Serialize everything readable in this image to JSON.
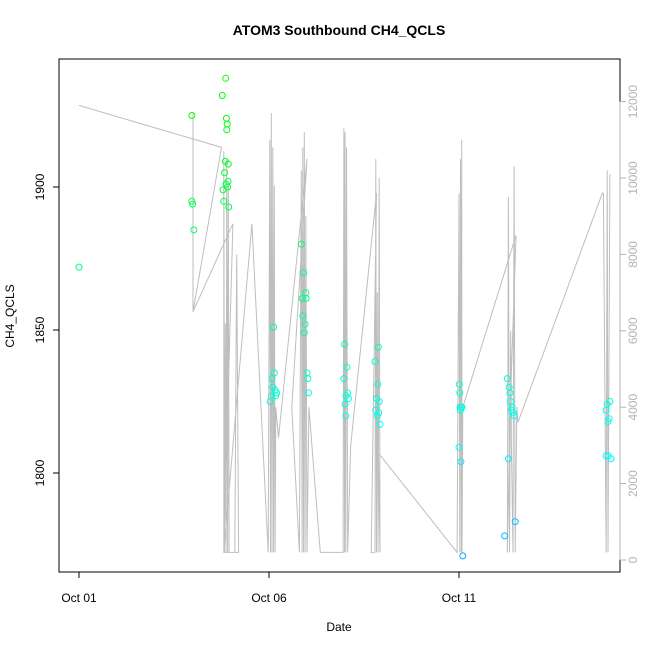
{
  "chart_data": {
    "type": "scatter",
    "title": "ATOM3 Southbound CH4_QCLS",
    "xlabel": "Date",
    "ylabel": "CH4_QCLS",
    "x_axis": {
      "kind": "date",
      "range_days_since_oct01": [
        0,
        14.5
      ],
      "ticks": [
        {
          "label": "Oct 01",
          "day": 0
        },
        {
          "label": "Oct 06",
          "day": 5
        },
        {
          "label": "Oct 11",
          "day": 10
        }
      ]
    },
    "y_left": {
      "range": [
        1768,
        1945
      ],
      "ticks": [
        1800,
        1850,
        1900
      ],
      "tick_labels": [
        "1800",
        "1850",
        "1900"
      ]
    },
    "y_right": {
      "range": [
        -500,
        12500
      ],
      "ticks": [
        0,
        2000,
        4000,
        6000,
        8000,
        10000,
        12000
      ],
      "tick_labels": [
        "0",
        "2000",
        "4000",
        "6000",
        "8000",
        "10000",
        "12000"
      ],
      "color": "#b3b3b3",
      "series": "altitude (gray line)"
    },
    "grid": false,
    "scatter_points": [
      {
        "day": 0.0,
        "ch4": 1872
      },
      {
        "day": 2.97,
        "ch4": 1925
      },
      {
        "day": 2.97,
        "ch4": 1895
      },
      {
        "day": 2.99,
        "ch4": 1894
      },
      {
        "day": 3.02,
        "ch4": 1885
      },
      {
        "day": 3.77,
        "ch4": 1932
      },
      {
        "day": 3.79,
        "ch4": 1899
      },
      {
        "day": 3.81,
        "ch4": 1895
      },
      {
        "day": 3.83,
        "ch4": 1905
      },
      {
        "day": 3.85,
        "ch4": 1909
      },
      {
        "day": 3.86,
        "ch4": 1938
      },
      {
        "day": 3.87,
        "ch4": 1901
      },
      {
        "day": 3.88,
        "ch4": 1924
      },
      {
        "day": 3.89,
        "ch4": 1920
      },
      {
        "day": 3.9,
        "ch4": 1922
      },
      {
        "day": 3.91,
        "ch4": 1900
      },
      {
        "day": 3.92,
        "ch4": 1902
      },
      {
        "day": 3.93,
        "ch4": 1908
      },
      {
        "day": 3.94,
        "ch4": 1893
      },
      {
        "day": 5.03,
        "ch4": 1825
      },
      {
        "day": 5.06,
        "ch4": 1827
      },
      {
        "day": 5.08,
        "ch4": 1833
      },
      {
        "day": 5.1,
        "ch4": 1830
      },
      {
        "day": 5.12,
        "ch4": 1851
      },
      {
        "day": 5.14,
        "ch4": 1835
      },
      {
        "day": 5.16,
        "ch4": 1829
      },
      {
        "day": 5.18,
        "ch4": 1827
      },
      {
        "day": 5.2,
        "ch4": 1828
      },
      {
        "day": 5.85,
        "ch4": 1880
      },
      {
        "day": 5.87,
        "ch4": 1861
      },
      {
        "day": 5.89,
        "ch4": 1855
      },
      {
        "day": 5.91,
        "ch4": 1870
      },
      {
        "day": 5.93,
        "ch4": 1849
      },
      {
        "day": 5.95,
        "ch4": 1852
      },
      {
        "day": 5.97,
        "ch4": 1863
      },
      {
        "day": 5.98,
        "ch4": 1861
      },
      {
        "day": 6.0,
        "ch4": 1835
      },
      {
        "day": 6.02,
        "ch4": 1833
      },
      {
        "day": 6.04,
        "ch4": 1828
      },
      {
        "day": 6.97,
        "ch4": 1833
      },
      {
        "day": 6.99,
        "ch4": 1845
      },
      {
        "day": 7.0,
        "ch4": 1824
      },
      {
        "day": 7.02,
        "ch4": 1820
      },
      {
        "day": 7.03,
        "ch4": 1827
      },
      {
        "day": 7.05,
        "ch4": 1837
      },
      {
        "day": 7.07,
        "ch4": 1828
      },
      {
        "day": 7.09,
        "ch4": 1826
      },
      {
        "day": 7.79,
        "ch4": 1839
      },
      {
        "day": 7.81,
        "ch4": 1822
      },
      {
        "day": 7.83,
        "ch4": 1826
      },
      {
        "day": 7.85,
        "ch4": 1820
      },
      {
        "day": 7.86,
        "ch4": 1831
      },
      {
        "day": 7.88,
        "ch4": 1844
      },
      {
        "day": 7.89,
        "ch4": 1821
      },
      {
        "day": 7.9,
        "ch4": 1825
      },
      {
        "day": 7.92,
        "ch4": 1817
      },
      {
        "day": 10.0,
        "ch4": 1809
      },
      {
        "day": 10.01,
        "ch4": 1831
      },
      {
        "day": 10.02,
        "ch4": 1828
      },
      {
        "day": 10.03,
        "ch4": 1823
      },
      {
        "day": 10.04,
        "ch4": 1822
      },
      {
        "day": 10.05,
        "ch4": 1804
      },
      {
        "day": 10.06,
        "ch4": 1823
      },
      {
        "day": 10.08,
        "ch4": 1823
      },
      {
        "day": 10.1,
        "ch4": 1771
      },
      {
        "day": 11.27,
        "ch4": 1833
      },
      {
        "day": 11.3,
        "ch4": 1805
      },
      {
        "day": 11.32,
        "ch4": 1830
      },
      {
        "day": 11.34,
        "ch4": 1828
      },
      {
        "day": 11.36,
        "ch4": 1825
      },
      {
        "day": 11.38,
        "ch4": 1822
      },
      {
        "day": 11.4,
        "ch4": 1823
      },
      {
        "day": 11.42,
        "ch4": 1821
      },
      {
        "day": 11.45,
        "ch4": 1820
      },
      {
        "day": 11.48,
        "ch4": 1783
      },
      {
        "day": 11.2,
        "ch4": 1778
      },
      {
        "day": 13.87,
        "ch4": 1822
      },
      {
        "day": 13.9,
        "ch4": 1824
      },
      {
        "day": 13.92,
        "ch4": 1818
      },
      {
        "day": 13.95,
        "ch4": 1819
      },
      {
        "day": 13.97,
        "ch4": 1825
      },
      {
        "day": 13.87,
        "ch4": 1806
      },
      {
        "day": 13.93,
        "ch4": 1806
      },
      {
        "day": 14.0,
        "ch4": 1805
      }
    ],
    "altitude_line": [
      [
        0.0,
        11900
      ],
      [
        3.75,
        10800
      ],
      [
        3.0,
        6500
      ],
      [
        3.0,
        11700
      ],
      [
        3.0,
        6500
      ],
      [
        4.05,
        8800
      ],
      [
        3.81,
        200
      ],
      [
        3.81,
        10700
      ],
      [
        3.83,
        200
      ],
      [
        3.85,
        6200
      ],
      [
        3.87,
        200
      ],
      [
        3.89,
        10500
      ],
      [
        3.91,
        200
      ],
      [
        3.93,
        9800
      ],
      [
        3.95,
        200
      ],
      [
        4.0,
        200
      ],
      [
        4.05,
        200
      ],
      [
        4.1,
        200
      ],
      [
        4.15,
        8000
      ],
      [
        4.2,
        200
      ],
      [
        3.81,
        200
      ],
      [
        4.55,
        8800
      ],
      [
        4.98,
        200
      ],
      [
        5.02,
        11000
      ],
      [
        5.04,
        200
      ],
      [
        5.06,
        11700
      ],
      [
        5.08,
        200
      ],
      [
        5.1,
        10800
      ],
      [
        5.12,
        200
      ],
      [
        5.14,
        9800
      ],
      [
        5.16,
        200
      ],
      [
        5.18,
        4000
      ],
      [
        5.25,
        3200
      ],
      [
        6.0,
        10500
      ],
      [
        5.6,
        4000
      ],
      [
        5.8,
        200
      ],
      [
        5.85,
        10200
      ],
      [
        5.87,
        200
      ],
      [
        5.89,
        10800
      ],
      [
        5.91,
        200
      ],
      [
        5.93,
        11200
      ],
      [
        5.95,
        200
      ],
      [
        5.97,
        9000
      ],
      [
        6.0,
        200
      ],
      [
        6.05,
        4000
      ],
      [
        6.35,
        200
      ],
      [
        6.95,
        200
      ],
      [
        6.97,
        11300
      ],
      [
        6.99,
        200
      ],
      [
        7.0,
        11200
      ],
      [
        7.02,
        200
      ],
      [
        7.04,
        10800
      ],
      [
        7.07,
        200
      ],
      [
        7.15,
        3000
      ],
      [
        7.83,
        9600
      ],
      [
        7.69,
        200
      ],
      [
        7.79,
        200
      ],
      [
        7.81,
        10500
      ],
      [
        7.83,
        200
      ],
      [
        7.85,
        7000
      ],
      [
        7.87,
        200
      ],
      [
        7.9,
        10000
      ],
      [
        7.92,
        200
      ],
      [
        7.88,
        2800
      ],
      [
        9.95,
        200
      ],
      [
        10.0,
        9600
      ],
      [
        10.02,
        200
      ],
      [
        10.04,
        10500
      ],
      [
        10.06,
        200
      ],
      [
        10.07,
        11000
      ],
      [
        10.08,
        200
      ],
      [
        10.1,
        4000
      ],
      [
        11.5,
        8500
      ],
      [
        11.35,
        4000
      ],
      [
        11.27,
        200
      ],
      [
        11.3,
        9500
      ],
      [
        11.33,
        200
      ],
      [
        11.36,
        6000
      ],
      [
        11.38,
        3000
      ],
      [
        11.42,
        200
      ],
      [
        11.45,
        10300
      ],
      [
        11.48,
        200
      ],
      [
        11.52,
        4000
      ],
      [
        11.55,
        3600
      ],
      [
        13.77,
        9600
      ],
      [
        13.8,
        9600
      ],
      [
        13.87,
        200
      ],
      [
        13.9,
        10200
      ],
      [
        13.92,
        200
      ],
      [
        13.97,
        10100
      ]
    ]
  }
}
